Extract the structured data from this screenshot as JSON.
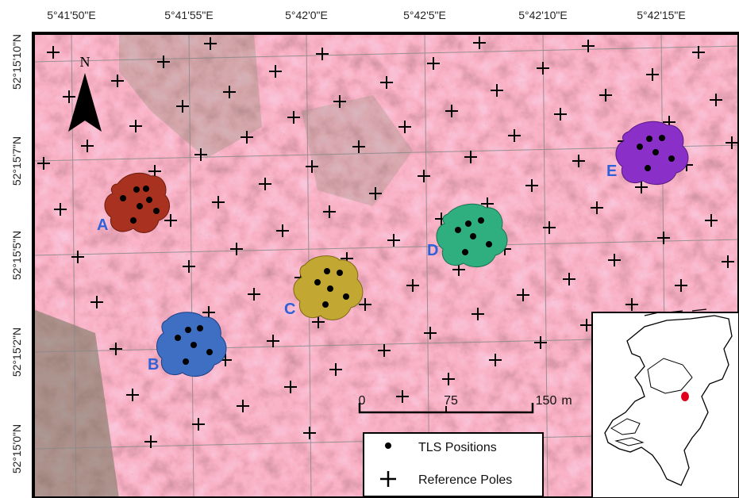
{
  "longitude_labels": [
    "5°41'50\"E",
    "5°41'55\"E",
    "5°42'0\"E",
    "5°42'5\"E",
    "5°42'10\"E",
    "5°42'15\"E"
  ],
  "latitude_labels": [
    "52°15'10\"N",
    "52°15'7\"N",
    "52°15'5\"N",
    "52°15'2\"N",
    "52°15'0\"N"
  ],
  "north_arrow": {
    "label": "N"
  },
  "sites": [
    {
      "label": "A",
      "color": "#a8321f"
    },
    {
      "label": "B",
      "color": "#3f6fc2"
    },
    {
      "label": "C",
      "color": "#c2a733"
    },
    {
      "label": "D",
      "color": "#2fae7f"
    },
    {
      "label": "E",
      "color": "#8b2fc9"
    }
  ],
  "scale_bar": {
    "ticks": [
      "0",
      "75",
      "150"
    ],
    "unit": "m"
  },
  "legend": {
    "tls_positions": "TLS Positions",
    "reference_poles": "Reference Poles"
  },
  "inset": {
    "country": "Netherlands",
    "location_marker_color": "#e0001a"
  }
}
